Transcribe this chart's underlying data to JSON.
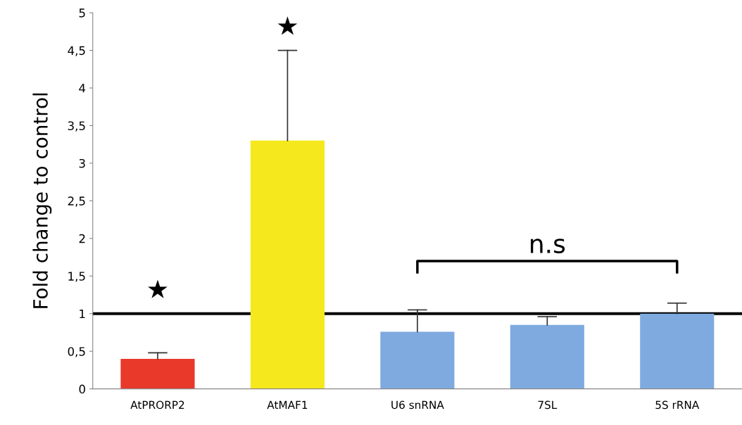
{
  "chart_data": {
    "type": "bar",
    "ylabel": "Fold change to control",
    "categories": [
      "AtPRORP2",
      "AtMAF1",
      "U6 snRNA",
      "7SL",
      "5S rRNA"
    ],
    "values": [
      0.4,
      3.3,
      0.76,
      0.85,
      1.0
    ],
    "colors": [
      "#e8392b",
      "#f5e81c",
      "#7eaae0",
      "#7eaae0",
      "#7eaae0"
    ],
    "errors": [
      [
        0.4,
        0.48
      ],
      [
        3.3,
        4.5
      ],
      [
        0.76,
        1.05
      ],
      [
        0.85,
        0.96
      ],
      [
        1.0,
        1.14
      ]
    ],
    "ylim": [
      0,
      5
    ],
    "yticks": [
      0,
      {
        "value": 0.5,
        "label": "0,5"
      },
      1,
      {
        "value": 1.5,
        "label": "1,5"
      },
      2,
      {
        "value": 2.5,
        "label": "2,5"
      },
      3,
      {
        "value": 3.5,
        "label": "3,5"
      },
      4,
      {
        "value": 4.5,
        "label": "4,5"
      },
      5
    ],
    "ref_lines": [
      {
        "axis": "y",
        "value": 1,
        "color": "#000000"
      }
    ],
    "annotations": [
      "★",
      "★",
      "n.s"
    ],
    "grid": false,
    "legend": false
  }
}
